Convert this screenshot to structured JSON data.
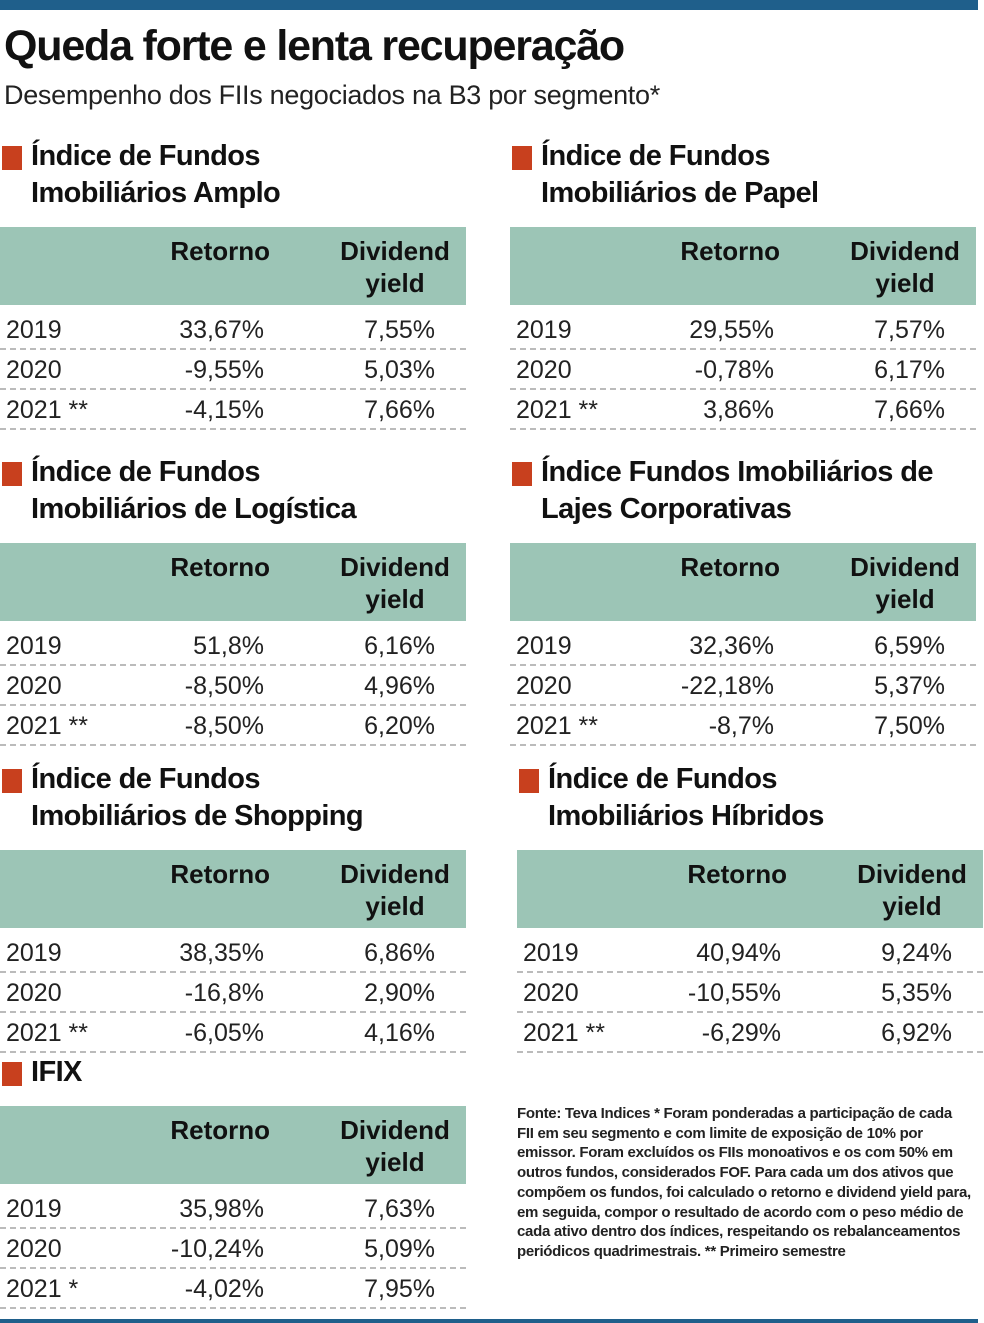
{
  "header": {
    "title": "Queda forte e lenta recuperação",
    "subtitle": "Desempenho dos FIIs negociados na B3 por segmento*"
  },
  "tables": [
    {
      "title": [
        "Índice de Fundos",
        "Imobiliários Amplo"
      ],
      "columns": [
        "Retorno",
        "Dividend yield"
      ],
      "rows": [
        [
          "2019",
          "33,67%",
          "7,55%"
        ],
        [
          "2020",
          "-9,55%",
          "5,03%"
        ],
        [
          "2021 **",
          "-4,15%",
          "7,66%"
        ]
      ]
    },
    {
      "title": [
        "Índice de Fundos",
        "Imobiliários de Papel"
      ],
      "columns": [
        "Retorno",
        "Dividend yield"
      ],
      "rows": [
        [
          "2019",
          "29,55%",
          "7,57%"
        ],
        [
          "2020",
          "-0,78%",
          "6,17%"
        ],
        [
          "2021 **",
          "3,86%",
          "7,66%"
        ]
      ]
    },
    {
      "title": [
        "Índice de Fundos",
        "Imobiliários de Logística"
      ],
      "columns": [
        "Retorno",
        "Dividend yield"
      ],
      "rows": [
        [
          "2019",
          "51,8%",
          "6,16%"
        ],
        [
          "2020",
          "-8,50%",
          "4,96%"
        ],
        [
          "2021 **",
          "-8,50%",
          "6,20%"
        ]
      ]
    },
    {
      "title": [
        "Índice Fundos Imobiliários de",
        "Lajes Corporativas"
      ],
      "columns": [
        "Retorno",
        "Dividend yield"
      ],
      "rows": [
        [
          "2019",
          "32,36%",
          "6,59%"
        ],
        [
          "2020",
          "-22,18%",
          "5,37%"
        ],
        [
          "2021 **",
          "-8,7%",
          "7,50%"
        ]
      ]
    },
    {
      "title": [
        "Índice de Fundos",
        "Imobiliários de Shopping"
      ],
      "columns": [
        "Retorno",
        "Dividend yield"
      ],
      "rows": [
        [
          "2019",
          "38,35%",
          "6,86%"
        ],
        [
          "2020",
          "-16,8%",
          "2,90%"
        ],
        [
          "2021 **",
          "-6,05%",
          "4,16%"
        ]
      ]
    },
    {
      "title": [
        "Índice de Fundos",
        "Imobiliários Híbridos"
      ],
      "columns": [
        "Retorno",
        "Dividend yield"
      ],
      "rows": [
        [
          "2019",
          "40,94%",
          "9,24%"
        ],
        [
          "2020",
          "-10,55%",
          "5,35%"
        ],
        [
          "2021 **",
          "-6,29%",
          "6,92%"
        ]
      ]
    },
    {
      "title": [
        "IFIX"
      ],
      "columns": [
        "Retorno",
        "Dividend yield"
      ],
      "rows": [
        [
          "2019",
          "35,98%",
          "7,63%"
        ],
        [
          "2020",
          "-10,24%",
          "5,09%"
        ],
        [
          "2021 *",
          "-4,02%",
          "7,95%"
        ]
      ]
    }
  ],
  "footnote": "Fonte: Teva Indices * Foram ponderadas a participação de cada FII em seu segmento e com limite de exposição de 10% por emissor. Foram excluídos os FIIs monoativos e os com 50% em outros fundos, considerados FOF. Para cada um dos ativos que compõem os fundos, foi calculado o retorno e dividend yield para, em seguida, compor o resultado de acordo com o peso médio de cada ativo dentro dos índices, respeitando os rebalanceamentos periódicos quadrimestrais. ** Primeiro semestre"
}
